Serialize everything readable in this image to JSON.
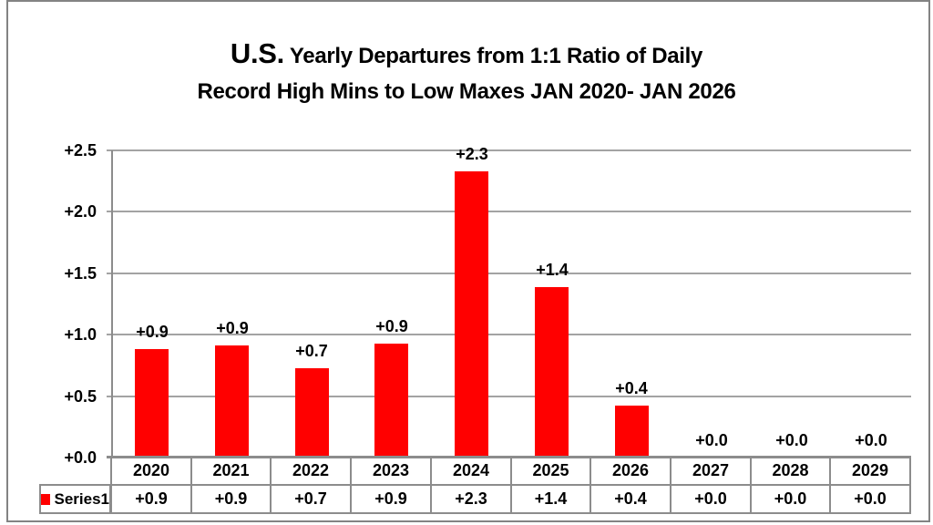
{
  "title": {
    "emphasis": "U.S.",
    "line1_rest": " Yearly Departures from 1:1 Ratio of Daily",
    "line2": "Record High Mins to Low Maxes JAN 2020- JAN 2026"
  },
  "chart_data": {
    "type": "bar",
    "title": "U.S. Yearly Departures from 1:1 Ratio of Daily Record High Mins to Low Maxes JAN 2020- JAN 2026",
    "categories": [
      "2020",
      "2021",
      "2022",
      "2023",
      "2024",
      "2025",
      "2026",
      "2027",
      "2028",
      "2029"
    ],
    "values": [
      0.88,
      0.91,
      0.73,
      0.93,
      2.33,
      1.39,
      0.42,
      0,
      0,
      0
    ],
    "bar_labels": [
      "+0.9",
      "+0.9",
      "+0.7",
      "+0.9",
      "+2.3",
      "+1.4",
      "+0.4",
      "+0.0",
      "+0.0",
      "+0.0"
    ],
    "series": [
      {
        "name": "Series1",
        "values": [
          0.9,
          0.9,
          0.7,
          0.9,
          2.3,
          1.4,
          0.4,
          0.0,
          0.0,
          0.0
        ]
      }
    ],
    "table_row_values": [
      "+0.9",
      "+0.9",
      "+0.7",
      "+0.9",
      "+2.3",
      "+1.4",
      "+0.4",
      "+0.0",
      "+0.0",
      "+0.0"
    ],
    "y_ticks": [
      {
        "value": 0.0,
        "label": "+0.0"
      },
      {
        "value": 0.5,
        "label": "+0.5"
      },
      {
        "value": 1.0,
        "label": "+1.0"
      },
      {
        "value": 1.5,
        "label": "+1.5"
      },
      {
        "value": 2.0,
        "label": "+2.0"
      },
      {
        "value": 2.5,
        "label": "+2.5"
      }
    ],
    "ylim": [
      0,
      2.5
    ],
    "xlabel": "",
    "ylabel": "",
    "grid": true,
    "legend_position": "bottom-left table cell",
    "bar_color": "#ff0000",
    "grid_color": "#a3a3a3",
    "axis_color": "#8c8c8c",
    "text_color": "#000000"
  }
}
